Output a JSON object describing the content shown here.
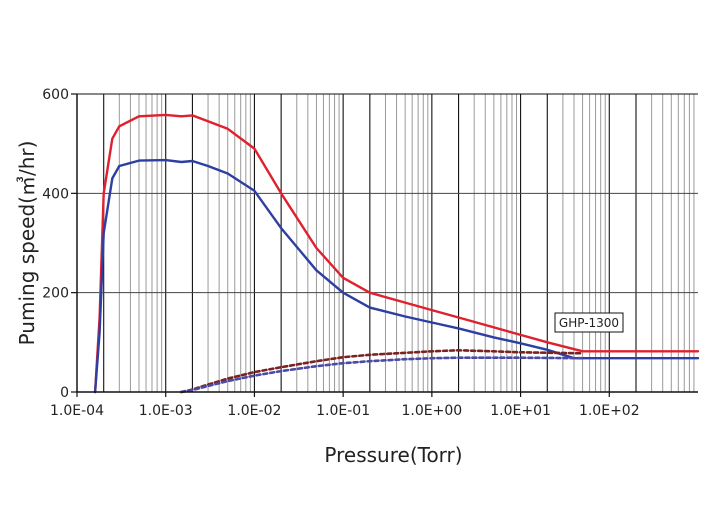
{
  "chart_data": {
    "type": "line",
    "title": "",
    "xlabel": "Pressure(Torr)",
    "ylabel": "Puming speed(㎥/hr)",
    "x_scale": "log",
    "xlim": [
      0.0001,
      1000
    ],
    "ylim": [
      0,
      600
    ],
    "x_ticks": [
      0.0001,
      0.001,
      0.01,
      0.1,
      1,
      10,
      100
    ],
    "x_tick_labels": [
      "1.0E-04",
      "1.0E-03",
      "1.0E-02",
      "1.0E-01",
      "1.0E+00",
      "1.0E+01",
      "1.0E+02"
    ],
    "y_ticks": [
      0,
      200,
      400,
      600
    ],
    "y_tick_labels": [
      "0",
      "200",
      "400",
      "600"
    ],
    "grid": true,
    "annotations": [
      {
        "text": "GHP-1300"
      }
    ],
    "series": [
      {
        "color": "#e0202e",
        "style": "solid",
        "x": [
          0.00016,
          0.00018,
          0.0002,
          0.00025,
          0.0003,
          0.0005,
          0.001,
          0.0015,
          0.002,
          0.003,
          0.005,
          0.01,
          0.02,
          0.05,
          0.1,
          0.2,
          0.5,
          1,
          2,
          5,
          10,
          20,
          50,
          1000
        ],
        "y": [
          0,
          150,
          400,
          510,
          535,
          555,
          558,
          555,
          557,
          545,
          530,
          490,
          400,
          290,
          230,
          200,
          180,
          165,
          150,
          130,
          115,
          100,
          82,
          82
        ]
      },
      {
        "color": "#2d3fa0",
        "style": "solid",
        "x": [
          0.00016,
          0.00018,
          0.0002,
          0.00025,
          0.0003,
          0.0005,
          0.001,
          0.0015,
          0.002,
          0.003,
          0.005,
          0.01,
          0.02,
          0.05,
          0.1,
          0.2,
          0.5,
          1,
          2,
          5,
          10,
          20,
          40,
          1000
        ],
        "y": [
          0,
          120,
          320,
          430,
          455,
          466,
          467,
          463,
          465,
          455,
          440,
          405,
          330,
          245,
          200,
          170,
          152,
          140,
          128,
          110,
          98,
          85,
          68,
          68
        ]
      },
      {
        "color": "#7a2222",
        "style": "dashed",
        "x": [
          0.0015,
          0.002,
          0.003,
          0.005,
          0.01,
          0.02,
          0.05,
          0.1,
          0.2,
          0.5,
          1,
          2,
          5,
          10,
          50
        ],
        "y": [
          0,
          5,
          15,
          27,
          40,
          50,
          62,
          70,
          75,
          79,
          82,
          84,
          82,
          80,
          78
        ]
      },
      {
        "color": "#4a4aa8",
        "style": "dashed",
        "x": [
          0.0015,
          0.002,
          0.003,
          0.005,
          0.01,
          0.02,
          0.05,
          0.1,
          0.2,
          0.5,
          1,
          2,
          5,
          10,
          50
        ],
        "y": [
          0,
          4,
          12,
          22,
          33,
          42,
          52,
          58,
          62,
          66,
          68,
          69,
          69,
          69,
          68
        ]
      }
    ]
  }
}
